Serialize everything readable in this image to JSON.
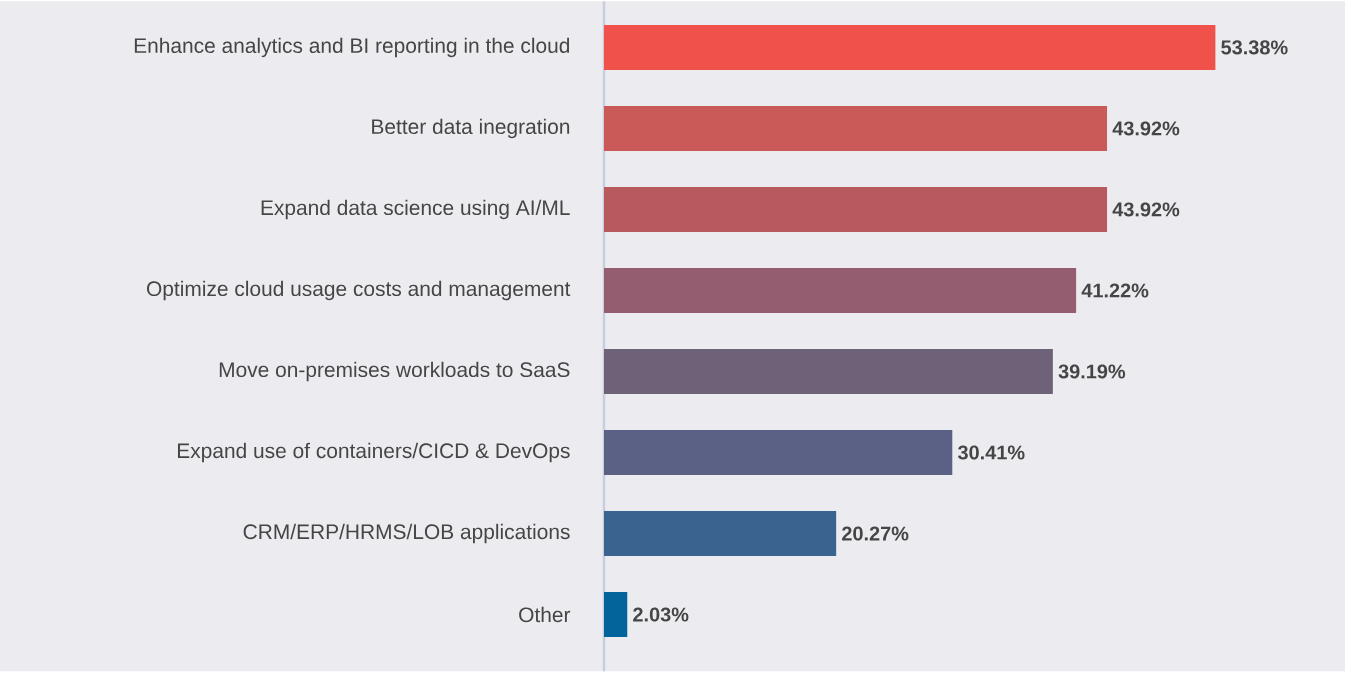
{
  "chart_data": {
    "type": "bar",
    "orientation": "horizontal",
    "categories": [
      "Enhance analytics and BI reporting in the cloud",
      "Better data inegration",
      "Expand data science using AI/ML",
      "Optimize cloud usage costs and management",
      "Move on-premises workloads to SaaS",
      "Expand use of containers/CICD & DevOps",
      "CRM/ERP/HRMS/LOB applications",
      "Other"
    ],
    "values": [
      53.38,
      43.92,
      43.92,
      41.22,
      39.19,
      30.41,
      20.27,
      2.03
    ],
    "colors": [
      "#f0514a",
      "#c95a58",
      "#b8595f",
      "#945e70",
      "#6e6279",
      "#5a6185",
      "#3a6390",
      "#02649a"
    ],
    "value_labels": [
      "53.38%",
      "43.92%",
      "43.92%",
      "41.22%",
      "39.19%",
      "30.41%",
      "20.27%",
      "2.03%"
    ]
  }
}
